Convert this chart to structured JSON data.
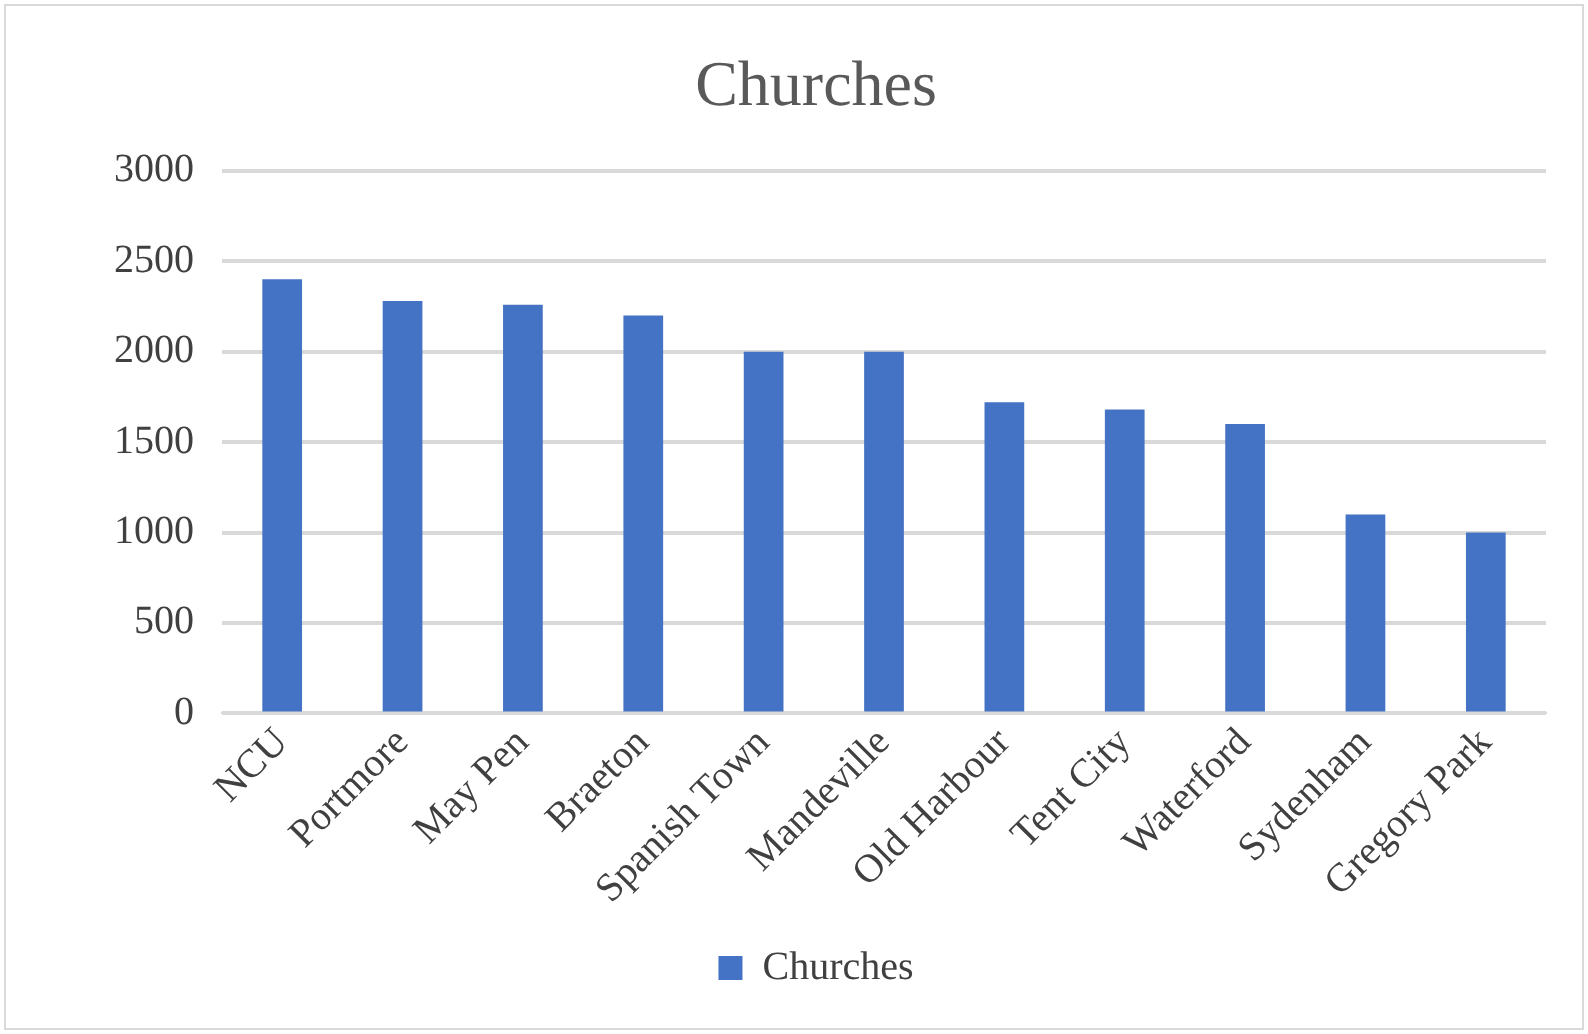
{
  "chart_data": {
    "type": "bar",
    "title": "Churches",
    "categories": [
      "NCU",
      "Portmore",
      "May Pen",
      "Braeton",
      "Spanish Town",
      "Mandeville",
      "Old Harbour",
      "Tent City",
      "Waterford",
      "Sydenham",
      "Gregory Park"
    ],
    "series": [
      {
        "name": "Churches",
        "color": "#4472c4",
        "values": [
          2400,
          2280,
          2260,
          2200,
          2000,
          2000,
          1720,
          1680,
          1600,
          1100,
          1000
        ]
      }
    ],
    "ylim": [
      0,
      3000
    ],
    "yticks": [
      0,
      500,
      1000,
      1500,
      2000,
      2500,
      3000
    ],
    "grid": "y",
    "legend": "bottom"
  }
}
